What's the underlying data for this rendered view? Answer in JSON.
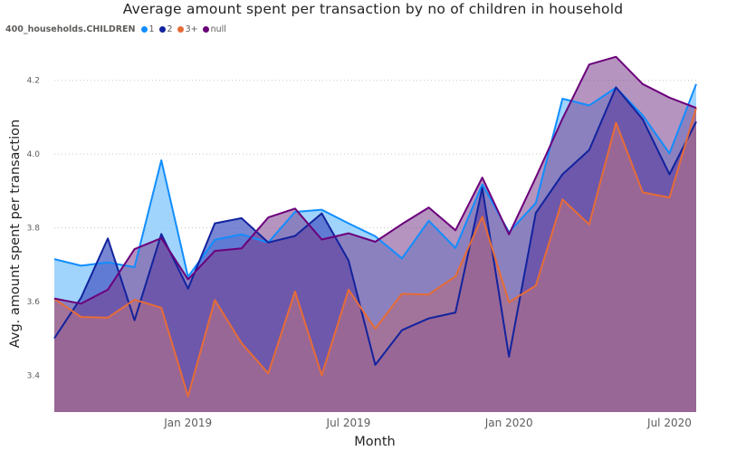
{
  "chart_data": {
    "type": "area",
    "title": "Average amount spent per transaction by no of children in household",
    "xlabel": "Month",
    "ylabel": "Avg. amount spent per transaction",
    "legend_title": "400_households.CHILDREN",
    "legend_position": "top-left",
    "grid": true,
    "ylim": [
      3.3,
      4.3
    ],
    "y_ticks": [
      "3.4",
      "3.6",
      "3.8",
      "4.0",
      "4.2"
    ],
    "y_tick_values": [
      3.4,
      3.6,
      3.8,
      4.0,
      4.2
    ],
    "x_ticks": [
      {
        "label": "Jan 2019",
        "index": 5
      },
      {
        "label": "Jul 2019",
        "index": 11
      },
      {
        "label": "Jan 2020",
        "index": 17
      },
      {
        "label": "Jul 2020",
        "index": 23
      }
    ],
    "x": [
      "2018-08",
      "2018-09",
      "2018-10",
      "2018-11",
      "2018-12",
      "2019-01",
      "2019-02",
      "2019-03",
      "2019-04",
      "2019-05",
      "2019-06",
      "2019-07",
      "2019-08",
      "2019-09",
      "2019-10",
      "2019-11",
      "2019-12",
      "2020-01",
      "2020-02",
      "2020-03",
      "2020-04",
      "2020-05",
      "2020-06",
      "2020-07",
      "2020-08"
    ],
    "series": [
      {
        "name": "1",
        "color": "#118dff",
        "fill": "#8fcdfb",
        "values": [
          3.715,
          3.697,
          3.706,
          3.693,
          3.983,
          3.667,
          3.767,
          3.782,
          3.76,
          3.843,
          3.849,
          3.812,
          3.777,
          3.717,
          3.819,
          3.745,
          3.918,
          3.788,
          3.867,
          4.15,
          4.132,
          4.18,
          4.105,
          4.002,
          4.19
        ]
      },
      {
        "name": "2",
        "color": "#12239e",
        "fill": "#4b5dc6",
        "values": [
          3.5,
          3.61,
          3.771,
          3.549,
          3.783,
          3.635,
          3.812,
          3.826,
          3.76,
          3.778,
          3.839,
          3.711,
          3.428,
          3.522,
          3.554,
          3.57,
          3.908,
          3.45,
          3.84,
          3.945,
          4.011,
          4.181,
          4.094,
          3.945,
          4.088
        ]
      },
      {
        "name": "3+",
        "color": "#e66c37",
        "fill": "#e8a98c",
        "values": [
          3.607,
          3.558,
          3.556,
          3.605,
          3.583,
          3.343,
          3.604,
          3.487,
          3.405,
          3.627,
          3.4,
          3.632,
          3.526,
          3.621,
          3.619,
          3.668,
          3.83,
          3.598,
          3.643,
          3.877,
          3.809,
          4.085,
          3.896,
          3.882,
          4.125
        ]
      },
      {
        "name": "null",
        "color": "#6b007b",
        "fill": "#7a3c8c",
        "values": [
          3.608,
          3.594,
          3.632,
          3.742,
          3.772,
          3.66,
          3.737,
          3.744,
          3.828,
          3.852,
          3.768,
          3.785,
          3.762,
          3.81,
          3.855,
          3.793,
          3.936,
          3.782,
          3.936,
          4.096,
          4.243,
          4.264,
          4.19,
          4.153,
          4.125
        ]
      }
    ]
  }
}
